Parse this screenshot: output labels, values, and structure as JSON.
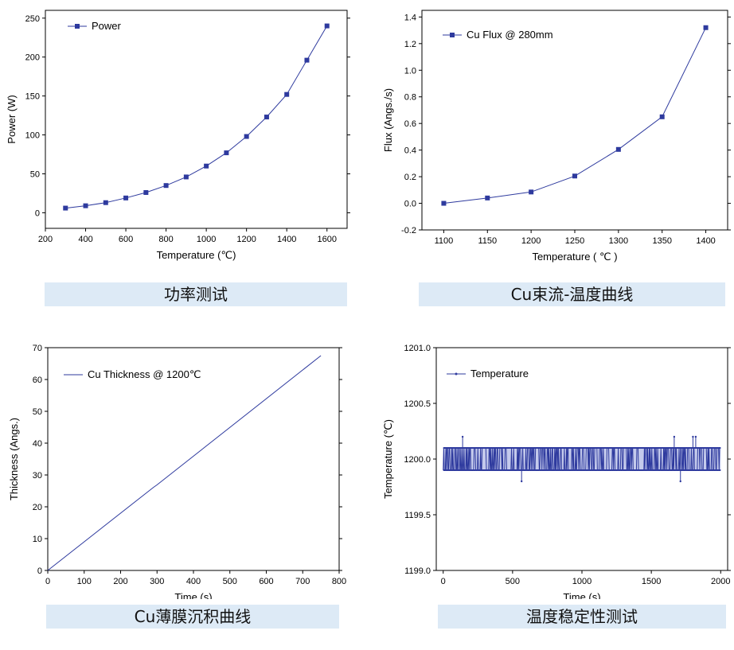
{
  "captions": {
    "power": "功率测试",
    "flux": "Cu束流-温度曲线",
    "thickness": "Cu薄膜沉积曲线",
    "stability": "温度稳定性测试"
  },
  "colors": {
    "series": "#2e3a9e",
    "axis": "#000000",
    "caption_bg": "#ddeaf6"
  },
  "chart_data": [
    {
      "id": "power",
      "type": "line",
      "xlabel": "Temperature (℃)",
      "ylabel": "Power (W)",
      "xlim": [
        200,
        1700
      ],
      "ylim": [
        -20,
        260
      ],
      "xticks": [
        200,
        400,
        600,
        800,
        1000,
        1200,
        1400,
        1600
      ],
      "yticks": [
        0,
        50,
        100,
        150,
        200,
        250
      ],
      "legend": "top-left",
      "grid": false,
      "series": [
        {
          "name": "Power",
          "marker": "square",
          "x": [
            300,
            400,
            500,
            600,
            700,
            800,
            900,
            1000,
            1100,
            1200,
            1300,
            1400,
            1500,
            1600
          ],
          "y": [
            6,
            9,
            13,
            19,
            26,
            35,
            46,
            60,
            77,
            98,
            123,
            152,
            196,
            240
          ]
        }
      ]
    },
    {
      "id": "flux",
      "type": "line",
      "xlabel": "Temperature ( ℃ )",
      "ylabel": "Flux (Angs./s)",
      "xlim": [
        1075,
        1425
      ],
      "ylim": [
        -0.2,
        1.45
      ],
      "xticks": [
        1100,
        1150,
        1200,
        1250,
        1300,
        1350,
        1400
      ],
      "yticks": [
        -0.2,
        0.0,
        0.2,
        0.4,
        0.6,
        0.8,
        1.0,
        1.2,
        1.4
      ],
      "ytick_labels": [
        "-0.2",
        "0.0",
        "0.2",
        "0.4",
        "0.6",
        "0.8",
        "1.0",
        "1.2",
        "1.4"
      ],
      "legend": "top-left",
      "grid": false,
      "series": [
        {
          "name": "Cu Flux @ 280mm",
          "marker": "square",
          "x": [
            1100,
            1150,
            1200,
            1250,
            1300,
            1350,
            1400
          ],
          "y": [
            0.0,
            0.04,
            0.085,
            0.205,
            0.405,
            0.65,
            1.32
          ]
        }
      ]
    },
    {
      "id": "thickness",
      "type": "line",
      "xlabel": "Time (s)",
      "ylabel": "Thickness (Angs.)",
      "xlim": [
        0,
        800
      ],
      "ylim": [
        0,
        70
      ],
      "xticks": [
        0,
        100,
        200,
        300,
        400,
        500,
        600,
        700,
        800
      ],
      "yticks": [
        0,
        10,
        20,
        30,
        40,
        50,
        60,
        70
      ],
      "legend": "top-left",
      "grid": false,
      "series": [
        {
          "name": "Cu Thickness @ 1200℃",
          "marker": "none",
          "x": [
            0,
            290,
            300,
            750
          ],
          "y": [
            0,
            26.1,
            26.9,
            67.5
          ]
        }
      ]
    },
    {
      "id": "stability",
      "type": "line",
      "xlabel": "Time (s)",
      "ylabel": "Temperature (℃)",
      "xlim": [
        -50,
        2050
      ],
      "ylim": [
        1199.0,
        1201.0
      ],
      "xticks": [
        0,
        500,
        1000,
        1500,
        2000
      ],
      "yticks": [
        1199.0,
        1199.5,
        1200.0,
        1200.5,
        1201.0
      ],
      "ytick_labels": [
        "1199.0",
        "1199.5",
        "1200.0",
        "1200.5",
        "1201.0"
      ],
      "legend": "top-left",
      "grid": false,
      "series": [
        {
          "name": "Temperature",
          "marker": "dot",
          "band": [
            1199.9,
            1200.1
          ],
          "spikes": [
            {
              "x": 140,
              "y": 1200.2
            },
            {
              "x": 565,
              "y": 1199.8
            },
            {
              "x": 1665,
              "y": 1200.2
            },
            {
              "x": 1710,
              "y": 1199.8
            },
            {
              "x": 1800,
              "y": 1200.2
            },
            {
              "x": 1820,
              "y": 1200.2
            }
          ]
        }
      ]
    }
  ]
}
